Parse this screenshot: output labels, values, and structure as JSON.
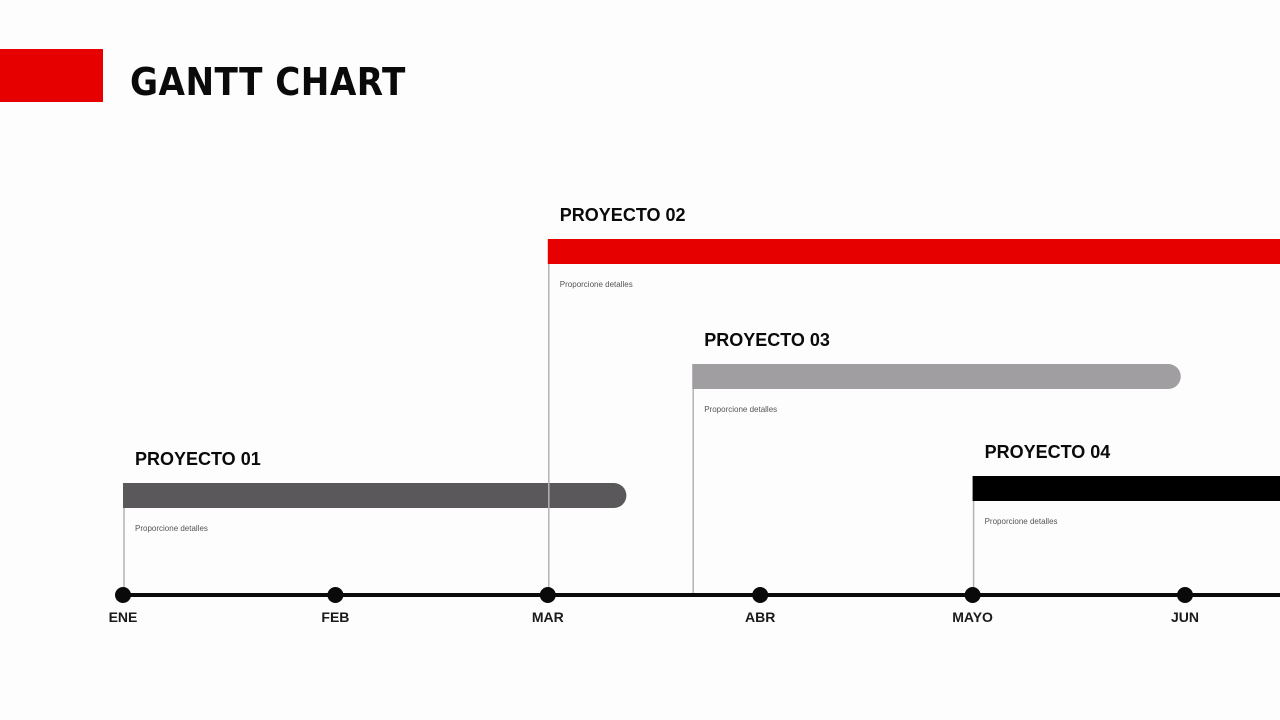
{
  "slide": {
    "title": "GANTT CHART",
    "accent_color": "#e60000"
  },
  "chart_data": {
    "type": "gantt",
    "title": "GANTT CHART",
    "timeline": {
      "months": [
        "ENE",
        "FEB",
        "MAR",
        "ABR",
        "MAYO",
        "JUN"
      ],
      "line_color": "#0a0a0a"
    },
    "projects": [
      {
        "name": "PROYECTO 01",
        "detail": "Proporcione detalles",
        "start": 0,
        "end": 2.37,
        "color": "#5a585a",
        "rounded_end": true
      },
      {
        "name": "PROYECTO 02",
        "detail": "Proporcione detalles",
        "start": 2,
        "end": 6.45,
        "color": "#e60000",
        "rounded_end": false
      },
      {
        "name": "PROYECTO 03",
        "detail": "Proporcione detalles",
        "start": 2.68,
        "end": 4.98,
        "color": "#a09ea0",
        "rounded_end": true
      },
      {
        "name": "PROYECTO 04",
        "detail": "Proporcione detalles",
        "start": 4,
        "end": 6.45,
        "color": "#000000",
        "rounded_end": false
      }
    ]
  }
}
